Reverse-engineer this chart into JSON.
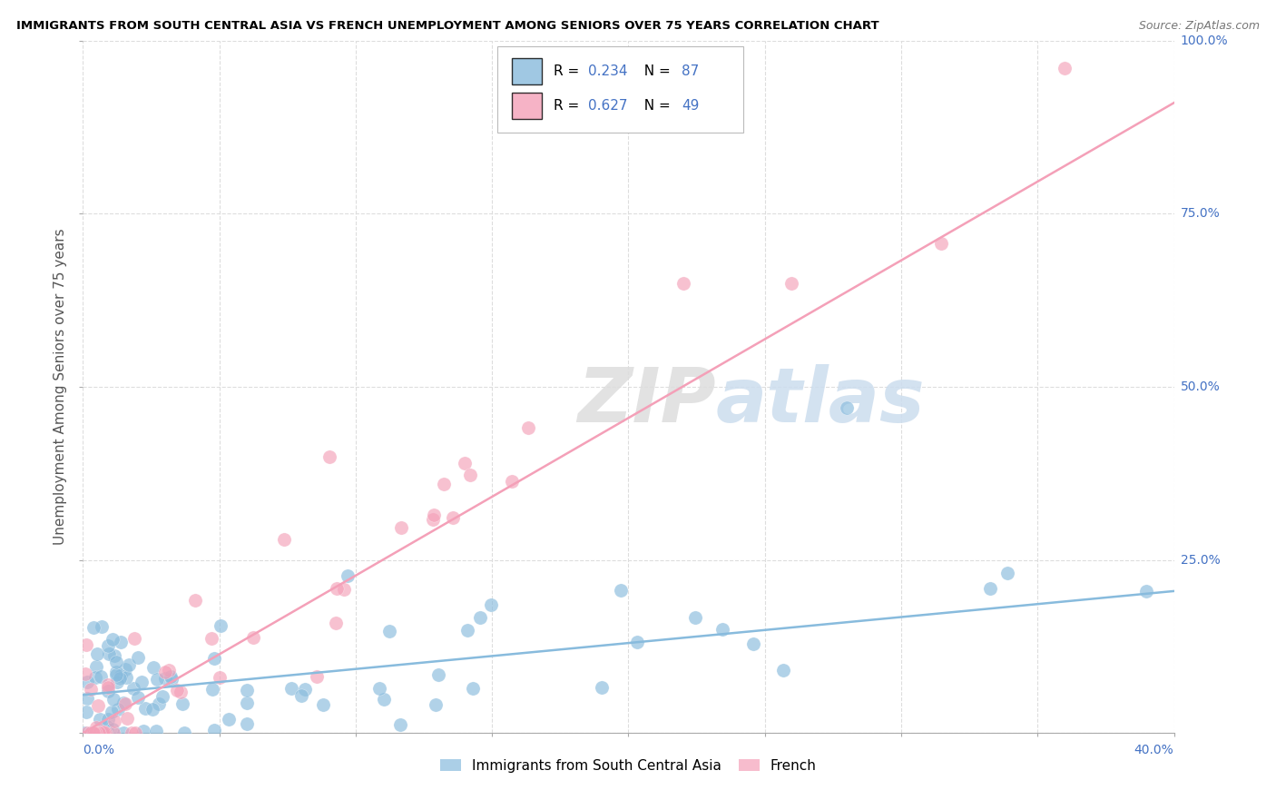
{
  "title": "IMMIGRANTS FROM SOUTH CENTRAL ASIA VS FRENCH UNEMPLOYMENT AMONG SENIORS OVER 75 YEARS CORRELATION CHART",
  "source": "Source: ZipAtlas.com",
  "ylabel": "Unemployment Among Seniors over 75 years",
  "legend_label1": "Immigrants from South Central Asia",
  "legend_label2": "French",
  "R1": "0.234",
  "N1": "87",
  "R2": "0.627",
  "N2": "49",
  "blue_color": "#88bbdd",
  "pink_color": "#f4a0b8",
  "blue_line_color": "#88bbdd",
  "pink_line_color": "#f4a0b8",
  "watermark": "ZIPatlas",
  "axis_color": "#4472c4",
  "text_color": "#4472c4",
  "label_color": "#555555",
  "xmin": 0.0,
  "xmax": 0.4,
  "ymin": 0.0,
  "ymax": 1.0,
  "blue_line_x0": 0.0,
  "blue_line_x1": 0.4,
  "blue_line_y0": 0.055,
  "blue_line_y1": 0.205,
  "pink_line_x0": 0.0,
  "pink_line_x1": 0.4,
  "pink_line_y0": 0.0,
  "pink_line_y1": 0.91
}
